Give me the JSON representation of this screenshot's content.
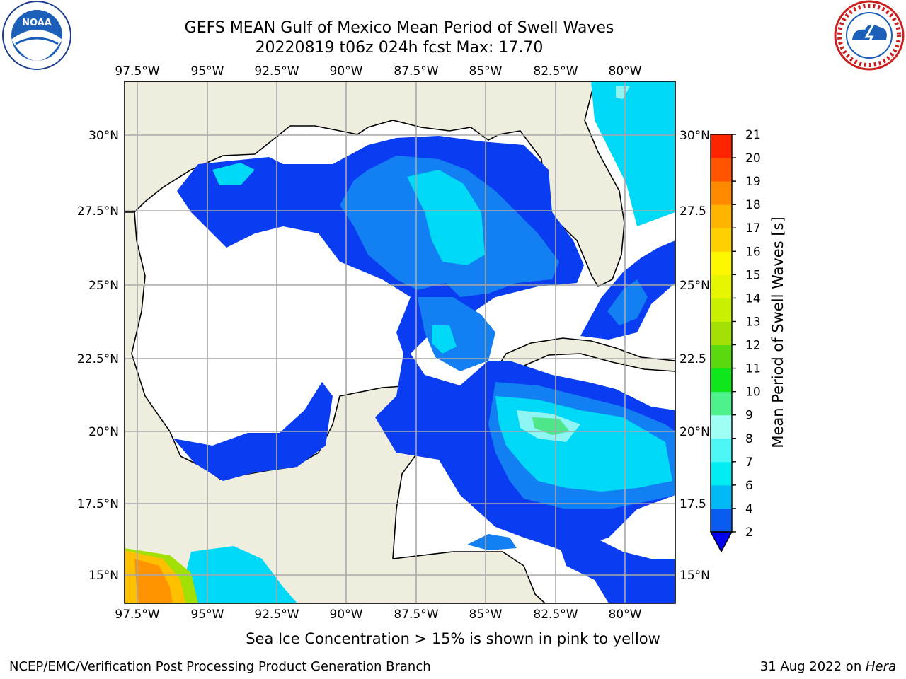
{
  "title_line1": "GEFS MEAN Gulf of Mexico Mean Period of Swell Waves",
  "title_line2": "20220819 t06z 024h fcst   Max: 17.70",
  "logos": {
    "left": "noaa-logo",
    "right": "nws-logo",
    "noaa_text": "NOAA",
    "nws_text": "NATIONAL WEATHER SERVICE"
  },
  "map": {
    "lon_labels": [
      "97.5°W",
      "95°W",
      "92.5°W",
      "90°W",
      "87.5°W",
      "85°W",
      "82.5°W",
      "80°W"
    ],
    "lat_labels_left": [
      "30°N",
      "27.5°N",
      "25°N",
      "22.5°N",
      "20°N",
      "17.5°N",
      "15°N"
    ],
    "lat_labels_right": [
      "30°N",
      "27.5",
      "25°N",
      "22.5",
      "20°N",
      "17.5",
      "15°N"
    ],
    "land_color": "#efedde",
    "ocean_color": "#ffffff"
  },
  "colorbar": {
    "label": "Mean Period of Swell Waves [s]",
    "ticks": [
      "2",
      "4",
      "6",
      "7",
      "8",
      "9",
      "10",
      "11",
      "12",
      "13",
      "14",
      "15",
      "16",
      "17",
      "18",
      "19",
      "20",
      "21"
    ],
    "colors": [
      "#0a5bf0",
      "#00b9f5",
      "#00eef2",
      "#4cf6f5",
      "#9efff5",
      "#4ef28a",
      "#10e61c",
      "#5ad90e",
      "#a2e005",
      "#c8f000",
      "#e8f500",
      "#fff700",
      "#ffd000",
      "#ffb400",
      "#ff8a00",
      "#ff5500",
      "#ff2400"
    ],
    "extend_color": "#0000ee"
  },
  "footer_note": "Sea Ice Concentration > 15% is shown in pink to yellow",
  "credit": "NCEP/EMC/Verification Post Processing Product Generation Branch",
  "date_text": "31 Aug 2022 on ",
  "machine": "Hera"
}
